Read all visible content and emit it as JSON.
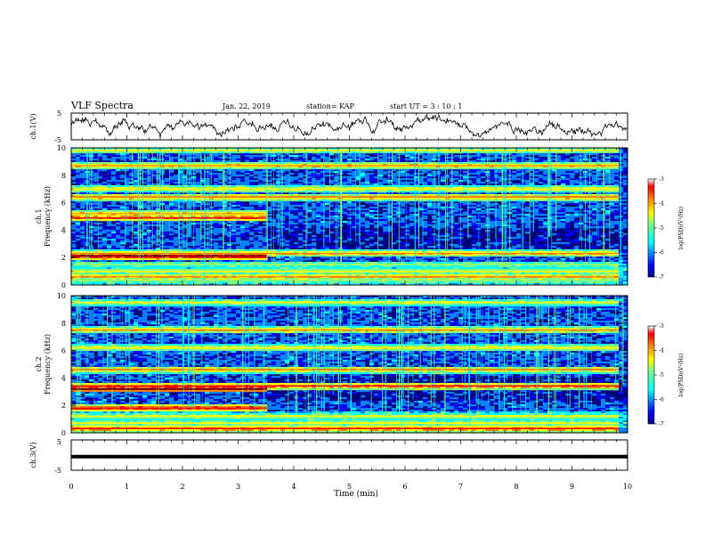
{
  "header": {
    "title": "VLF Spectra",
    "date": "Jan. 22, 2019",
    "station": "station= KAP",
    "start": "start UT = 3 : 10 : 1"
  },
  "chart_data": [
    {
      "type": "line",
      "panel": "ch1-waveform",
      "ylabel": "ch.1(V)",
      "yticks": [
        "5",
        "-5"
      ],
      "ylim": [
        -5,
        5
      ],
      "xlim": [
        0,
        9.85
      ],
      "description_of_series": "noisy waveform between about -4 and 4 V",
      "color": "#000000"
    },
    {
      "type": "heatmap",
      "panel": "ch1-spectrogram",
      "ylabel": "ch.1\nFrequency (kHz)",
      "ylabel_lines": [
        "ch.1",
        "Frequency (kHz)"
      ],
      "yticks": [
        "0",
        "2",
        "4",
        "6",
        "8",
        "10"
      ],
      "ylim": [
        0,
        10
      ],
      "xlim": [
        0,
        9.85
      ],
      "regime_change_x": 3.5,
      "bands_khz": [
        {
          "f": 0.3,
          "level": 0.55,
          "until": 9.85
        },
        {
          "f": 0.6,
          "level": 0.7,
          "until": 9.85
        },
        {
          "f": 1.0,
          "level": 0.6,
          "until": 9.85
        },
        {
          "f": 1.5,
          "level": 0.55,
          "until": 9.85
        },
        {
          "f": 2.1,
          "level": 0.95,
          "until": 3.5
        },
        {
          "f": 2.3,
          "level": 0.7,
          "until": 9.85
        },
        {
          "f": 4.9,
          "level": 0.8,
          "until": 3.5
        },
        {
          "f": 5.2,
          "level": 0.7,
          "until": 3.5
        },
        {
          "f": 6.4,
          "level": 0.75,
          "until": 9.85
        },
        {
          "f": 7.0,
          "level": 0.65,
          "until": 9.85
        },
        {
          "f": 8.7,
          "level": 0.7,
          "until": 9.85
        },
        {
          "f": 9.8,
          "level": 0.6,
          "until": 9.85
        }
      ],
      "colorbar": {
        "label": "log(PSD)(V²/Hz)",
        "ticks": [
          "-3",
          "-4",
          "-5",
          "-6",
          "-7"
        ],
        "range": [
          -7,
          -3
        ]
      }
    },
    {
      "type": "heatmap",
      "panel": "ch2-spectrogram",
      "ylabel": "ch.2\nFrequency (kHz)",
      "ylabel_lines": [
        "ch.2",
        "Frequency (kHz)"
      ],
      "yticks": [
        "0",
        "2",
        "4",
        "6",
        "8",
        "10"
      ],
      "ylim": [
        0,
        10
      ],
      "xlim": [
        0,
        9.85
      ],
      "regime_change_x": 3.5,
      "bands_khz": [
        {
          "f": 0.3,
          "level": 0.8,
          "until": 9.85
        },
        {
          "f": 0.7,
          "level": 0.6,
          "until": 9.85
        },
        {
          "f": 1.2,
          "level": 0.6,
          "until": 9.85
        },
        {
          "f": 1.8,
          "level": 0.85,
          "until": 3.5
        },
        {
          "f": 3.2,
          "level": 0.95,
          "until": 3.5
        },
        {
          "f": 3.4,
          "level": 0.8,
          "until": 9.85
        },
        {
          "f": 4.6,
          "level": 0.7,
          "until": 9.85
        },
        {
          "f": 6.2,
          "level": 0.65,
          "until": 9.85
        },
        {
          "f": 7.5,
          "level": 0.7,
          "until": 9.85
        },
        {
          "f": 9.5,
          "level": 0.6,
          "until": 9.85
        }
      ],
      "colorbar": {
        "label": "log(PSD)(V²/Hz)",
        "ticks": [
          "-3",
          "-4",
          "-5",
          "-6",
          "-7"
        ],
        "range": [
          -7,
          -3
        ]
      }
    },
    {
      "type": "line",
      "panel": "ch3-waveform",
      "ylabel": "ch.3(V)",
      "yticks": [
        "5",
        "-5"
      ],
      "ylim": [
        -5,
        5
      ],
      "xlim": [
        0,
        9.85
      ],
      "y": [
        -0.5
      ],
      "color": "#000000"
    }
  ],
  "xaxis": {
    "label": "Time (min)",
    "ticks": [
      "0",
      "1",
      "2",
      "3",
      "4",
      "5",
      "6",
      "7",
      "8",
      "9",
      "10"
    ],
    "xlim": [
      0,
      10
    ]
  },
  "colors": {
    "colormap": [
      "#00007f",
      "#0000ff",
      "#0080ff",
      "#00ffff",
      "#80ff80",
      "#ffff00",
      "#ff8000",
      "#ff0000",
      "#7f0000"
    ]
  }
}
